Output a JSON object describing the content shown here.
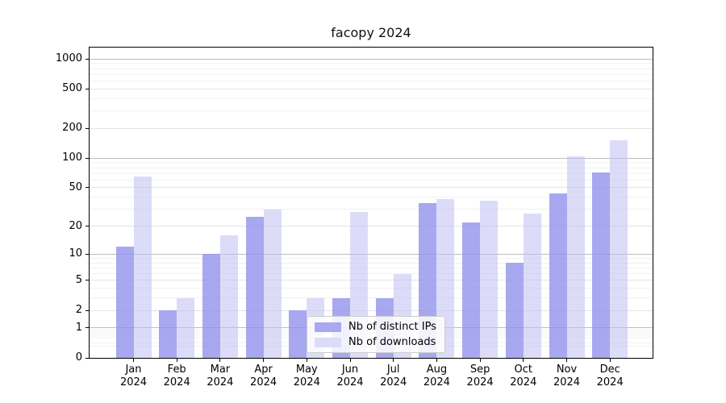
{
  "title": "facopy 2024",
  "legend": {
    "items": [
      {
        "label": "Nb of distinct IPs",
        "color": "#a9a9f0"
      },
      {
        "label": "Nb of downloads",
        "color": "#dcdcf8"
      }
    ]
  },
  "chart_data": {
    "type": "bar",
    "title": "facopy 2024",
    "categories": [
      "Jan 2024",
      "Feb 2024",
      "Mar 2024",
      "Apr 2024",
      "May 2024",
      "Jun 2024",
      "Jul 2024",
      "Aug 2024",
      "Sep 2024",
      "Oct 2024",
      "Nov 2024",
      "Dec 2024"
    ],
    "series": [
      {
        "name": "Nb of distinct IPs",
        "color": "#a9a9f0",
        "bar_color": "rgba(143,143,236,0.78)",
        "values": [
          12,
          2,
          10,
          25,
          2,
          3,
          3,
          35,
          22,
          8,
          44,
          72
        ]
      },
      {
        "name": "Nb of downloads",
        "color": "#dcdcf8",
        "bar_color": "rgba(191,191,242,0.55)",
        "values": [
          65,
          3,
          16,
          30,
          3,
          28,
          6,
          38,
          37,
          27,
          105,
          153
        ]
      }
    ],
    "xlabel": "",
    "ylabel": "",
    "yscale": "log1p",
    "yticks": [
      0,
      1,
      2,
      5,
      10,
      20,
      50,
      100,
      200,
      500,
      1000
    ],
    "ylim": [
      0,
      1300
    ],
    "grid": true,
    "legend_position": "lower center-right"
  }
}
